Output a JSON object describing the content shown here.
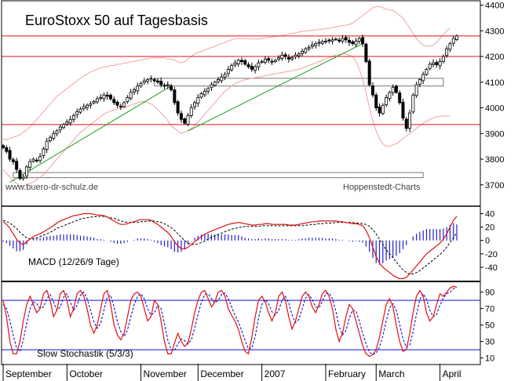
{
  "chart_data": {
    "type": "candlestick-with-indicators",
    "title": "EuroStoxx 50 auf Tagesbasis",
    "source_left": "www.buero-dr-schulz.de",
    "source_right": "Hoppenstedt-Charts",
    "months": [
      "September",
      "October",
      "November",
      "December",
      "2007",
      "February",
      "March",
      "April"
    ],
    "price_panel": {
      "ylim": [
        3620,
        4420
      ],
      "yticks": [
        "3700",
        "3800",
        "3900",
        "4000",
        "4100",
        "4200",
        "4300",
        "4400"
      ],
      "resistance_lines": [
        4280,
        4200,
        3935
      ],
      "boxes": [
        {
          "from_day": 45,
          "to_day": 131,
          "low": 4085,
          "high": 4115
        },
        {
          "from_day": 3,
          "to_day": 125,
          "low": 3728,
          "high": 3748
        }
      ],
      "trendlines": [
        {
          "from_day": 2,
          "from_price": 3710,
          "to_day": 50,
          "to_price": 4085
        },
        {
          "from_day": 55,
          "from_price": 3910,
          "to_day": 107,
          "to_price": 4250
        }
      ],
      "closes": [
        3845,
        3830,
        3800,
        3790,
        3760,
        3725,
        3730,
        3770,
        3790,
        3800,
        3795,
        3810,
        3840,
        3870,
        3885,
        3900,
        3910,
        3925,
        3935,
        3945,
        3955,
        3970,
        3985,
        3995,
        4005,
        4010,
        4015,
        4025,
        4035,
        4040,
        4050,
        4045,
        4035,
        4020,
        4010,
        4005,
        4020,
        4040,
        4060,
        4070,
        4085,
        4095,
        4105,
        4110,
        4115,
        4105,
        4100,
        4090,
        4085,
        4090,
        4070,
        4020,
        3980,
        3955,
        3940,
        3970,
        4000,
        4020,
        4040,
        4055,
        4065,
        4075,
        4090,
        4100,
        4110,
        4120,
        4130,
        4150,
        4165,
        4175,
        4185,
        4180,
        4170,
        4160,
        4150,
        4160,
        4175,
        4180,
        4190,
        4185,
        4180,
        4185,
        4195,
        4205,
        4200,
        4190,
        4195,
        4205,
        4210,
        4220,
        4230,
        4235,
        4245,
        4250,
        4255,
        4258,
        4260,
        4262,
        4265,
        4268,
        4260,
        4270,
        4265,
        4255,
        4250,
        4260,
        4270,
        4250,
        4180,
        4090,
        4050,
        4000,
        3980,
        4010,
        4040,
        4060,
        4080,
        4060,
        4020,
        3960,
        3920,
        3980,
        4050,
        4090,
        4110,
        4130,
        4150,
        4170,
        4175,
        4168,
        4180,
        4200,
        4230,
        4250,
        4270,
        4280
      ],
      "bollinger_upper": [
        3880,
        3875,
        3880,
        3885,
        3890,
        3895,
        3905,
        3915,
        3925,
        3940,
        3955,
        3970,
        3985,
        4000,
        4015,
        4030,
        4045,
        4055,
        4065,
        4075,
        4085,
        4095,
        4105,
        4115,
        4125,
        4130,
        4140,
        4145,
        4150,
        4155,
        4160,
        4160,
        4165,
        4165,
        4170,
        4170,
        4175,
        4175,
        4180,
        4180,
        4185,
        4185,
        4190,
        4190,
        4195,
        4195,
        4195,
        4195,
        4195,
        4190,
        4190,
        4185,
        4180,
        4175,
        4180,
        4190,
        4200,
        4210,
        4215,
        4220,
        4225,
        4230,
        4235,
        4240,
        4245,
        4250,
        4255,
        4260,
        4265,
        4270,
        4270,
        4270,
        4270,
        4270,
        4268,
        4268,
        4268,
        4270,
        4272,
        4275,
        4275,
        4278,
        4280,
        4282,
        4285,
        4288,
        4290,
        4292,
        4295,
        4298,
        4300,
        4300,
        4302,
        4304,
        4305,
        4306,
        4308,
        4310,
        4312,
        4315,
        4318,
        4320,
        4322,
        4325,
        4330,
        4340,
        4350,
        4360,
        4370,
        4380,
        4390,
        4395,
        4395,
        4390,
        4385,
        4380,
        4380,
        4370,
        4360,
        4350,
        4330,
        4310,
        4290,
        4270,
        4255,
        4245,
        4240,
        4240,
        4245,
        4255,
        4270,
        4285,
        4300,
        4310
      ],
      "bollinger_lower": [
        3760,
        3745,
        3730,
        3718,
        3705,
        3695,
        3695,
        3700,
        3705,
        3712,
        3720,
        3730,
        3740,
        3755,
        3770,
        3785,
        3800,
        3815,
        3830,
        3845,
        3860,
        3875,
        3890,
        3905,
        3915,
        3925,
        3935,
        3945,
        3955,
        3965,
        3975,
        3982,
        3988,
        3992,
        3995,
        3998,
        4000,
        4005,
        4010,
        4015,
        4020,
        4025,
        4025,
        4020,
        4015,
        4005,
        3995,
        3980,
        3965,
        3950,
        3930,
        3920,
        3910,
        3900,
        3905,
        3912,
        3920,
        3930,
        3945,
        3960,
        3975,
        3990,
        4005,
        4020,
        4035,
        4050,
        4065,
        4075,
        4085,
        4095,
        4100,
        4105,
        4110,
        4112,
        4115,
        4118,
        4120,
        4122,
        4125,
        4128,
        4130,
        4132,
        4135,
        4138,
        4140,
        4142,
        4145,
        4148,
        4150,
        4155,
        4160,
        4165,
        4170,
        4175,
        4180,
        4185,
        4190,
        4195,
        4200,
        4205,
        4208,
        4210,
        4210,
        4205,
        4200,
        4180,
        4150,
        4110,
        4060,
        4000,
        3950,
        3910,
        3880,
        3860,
        3850,
        3850,
        3855,
        3860,
        3870,
        3880,
        3890,
        3900,
        3910,
        3920,
        3930,
        3940,
        3948,
        3955,
        3960,
        3965,
        3967,
        3968,
        3968,
        3968
      ]
    },
    "macd_panel": {
      "title": "MACD (12/26/9 Tage)",
      "ylim": [
        -60,
        50
      ],
      "yticks": [
        "40",
        "20",
        "0",
        "-20",
        "-40"
      ],
      "macd": [
        28,
        24,
        18,
        10,
        2,
        -4,
        -6,
        -2,
        2,
        6,
        8,
        10,
        13,
        16,
        19,
        22,
        26,
        29,
        31,
        33,
        35,
        37,
        38,
        39,
        40,
        40,
        40,
        39,
        38,
        38,
        37,
        35,
        32,
        29,
        26,
        24,
        24,
        25,
        27,
        28,
        30,
        31,
        31,
        31,
        30,
        27,
        24,
        20,
        16,
        12,
        6,
        -2,
        -8,
        -12,
        -13,
        -10,
        -6,
        -2,
        2,
        6,
        9,
        12,
        14,
        16,
        18,
        20,
        22,
        24,
        25,
        26,
        27,
        26,
        25,
        24,
        23,
        23,
        24,
        24,
        25,
        25,
        24,
        24,
        24,
        24,
        24,
        23,
        23,
        23,
        24,
        25,
        26,
        27,
        28,
        28,
        29,
        29,
        29,
        29,
        29,
        29,
        28,
        28,
        27,
        26,
        25,
        25,
        24,
        22,
        15,
        4,
        -10,
        -24,
        -34,
        -40,
        -44,
        -48,
        -52,
        -55,
        -57,
        -57,
        -55,
        -50,
        -44,
        -38,
        -32,
        -26,
        -20,
        -16,
        -12,
        -8,
        -4,
        2,
        10,
        20,
        30,
        36
      ],
      "signal": [
        30,
        28,
        26,
        22,
        18,
        12,
        8,
        4,
        2,
        3,
        4,
        6,
        8,
        10,
        12,
        15,
        18,
        20,
        22,
        24,
        26,
        28,
        30,
        32,
        33,
        34,
        35,
        35,
        36,
        36,
        36,
        35,
        34,
        33,
        31,
        29,
        28,
        27,
        27,
        27,
        27,
        28,
        28,
        29,
        29,
        29,
        28,
        27,
        25,
        22,
        19,
        15,
        10,
        5,
        0,
        -4,
        -6,
        -6,
        -5,
        -3,
        -1,
        2,
        5,
        7,
        9,
        11,
        13,
        15,
        17,
        18,
        19,
        20,
        21,
        21,
        21,
        21,
        21,
        22,
        22,
        22,
        22,
        22,
        22,
        22,
        22,
        22,
        22,
        22,
        22,
        22,
        23,
        23,
        24,
        24,
        25,
        25,
        26,
        26,
        26,
        27,
        27,
        27,
        27,
        27,
        27,
        26,
        26,
        25,
        24,
        21,
        16,
        10,
        2,
        -6,
        -14,
        -20,
        -26,
        -32,
        -38,
        -44,
        -48,
        -50,
        -50,
        -48,
        -45,
        -41,
        -37,
        -33,
        -29,
        -25,
        -21,
        -16,
        -10,
        -3,
        4,
        12
      ],
      "histogram": [
        -2,
        -4,
        -8,
        -12,
        -16,
        -16,
        -14,
        -6,
        0,
        3,
        4,
        4,
        5,
        6,
        7,
        7,
        8,
        9,
        9,
        9,
        9,
        9,
        8,
        7,
        7,
        6,
        5,
        4,
        2,
        2,
        1,
        0,
        -2,
        -4,
        -5,
        -5,
        -4,
        -2,
        0,
        1,
        3,
        3,
        3,
        2,
        1,
        -2,
        -4,
        -7,
        -9,
        -10,
        -13,
        -17,
        -18,
        -17,
        -13,
        -6,
        0,
        4,
        7,
        9,
        10,
        10,
        9,
        9,
        9,
        9,
        9,
        9,
        8,
        8,
        8,
        6,
        4,
        3,
        2,
        2,
        3,
        2,
        3,
        3,
        2,
        2,
        2,
        2,
        2,
        1,
        1,
        1,
        2,
        3,
        3,
        4,
        4,
        4,
        4,
        4,
        3,
        3,
        3,
        2,
        1,
        1,
        0,
        -1,
        -2,
        -1,
        -2,
        -3,
        -9,
        -17,
        -26,
        -34,
        -36,
        -34,
        -30,
        -28,
        -26,
        -23,
        -19,
        -13,
        -7,
        0,
        6,
        10,
        13,
        15,
        17,
        17,
        17,
        17,
        17,
        18,
        20,
        23,
        26,
        24
      ]
    },
    "stochastic_panel": {
      "title": "Slow Stochastik (5/3/3)",
      "ylim": [
        3,
        102
      ],
      "yticks": [
        "90",
        "70",
        "50",
        "30",
        "10"
      ],
      "reference_lines": [
        80,
        20
      ],
      "k": [
        80,
        60,
        30,
        15,
        15,
        30,
        55,
        75,
        85,
        75,
        65,
        70,
        88,
        92,
        80,
        60,
        68,
        88,
        92,
        80,
        60,
        70,
        88,
        92,
        85,
        70,
        50,
        40,
        50,
        70,
        88,
        92,
        75,
        50,
        38,
        32,
        40,
        60,
        80,
        88,
        90,
        85,
        70,
        55,
        60,
        80,
        75,
        55,
        30,
        15,
        15,
        28,
        40,
        30,
        24,
        28,
        45,
        65,
        80,
        90,
        92,
        82,
        72,
        78,
        90,
        92,
        85,
        70,
        62,
        55,
        45,
        30,
        18,
        15,
        35,
        60,
        80,
        85,
        78,
        65,
        55,
        65,
        85,
        90,
        80,
        60,
        45,
        55,
        70,
        85,
        90,
        85,
        72,
        65,
        75,
        88,
        92,
        85,
        70,
        45,
        30,
        40,
        60,
        75,
        70,
        55,
        40,
        25,
        15,
        12,
        14,
        20,
        35,
        55,
        75,
        82,
        72,
        50,
        30,
        18,
        20,
        40,
        65,
        85,
        92,
        85,
        65,
        55,
        60,
        75,
        88,
        85,
        90,
        95,
        97,
        96
      ],
      "d": [
        75,
        70,
        55,
        38,
        22,
        18,
        32,
        52,
        70,
        78,
        76,
        70,
        72,
        82,
        87,
        78,
        68,
        72,
        84,
        88,
        78,
        68,
        74,
        86,
        90,
        82,
        68,
        54,
        46,
        52,
        68,
        84,
        86,
        72,
        54,
        42,
        36,
        44,
        60,
        75,
        85,
        88,
        82,
        70,
        62,
        65,
        74,
        70,
        52,
        32,
        20,
        19,
        27,
        33,
        31,
        27,
        32,
        46,
        63,
        78,
        87,
        88,
        82,
        77,
        80,
        87,
        89,
        82,
        72,
        62,
        54,
        43,
        31,
        21,
        22,
        36,
        58,
        75,
        81,
        76,
        66,
        62,
        68,
        80,
        85,
        77,
        62,
        53,
        57,
        70,
        83,
        87,
        81,
        72,
        71,
        79,
        88,
        89,
        82,
        67,
        48,
        38,
        43,
        58,
        68,
        67,
        55,
        40,
        27,
        17,
        14,
        16,
        23,
        37,
        55,
        71,
        76,
        68,
        51,
        33,
        23,
        26,
        42,
        63,
        81,
        88,
        81,
        68,
        60,
        63,
        74,
        83,
        88,
        90,
        94,
        96
      ]
    }
  }
}
